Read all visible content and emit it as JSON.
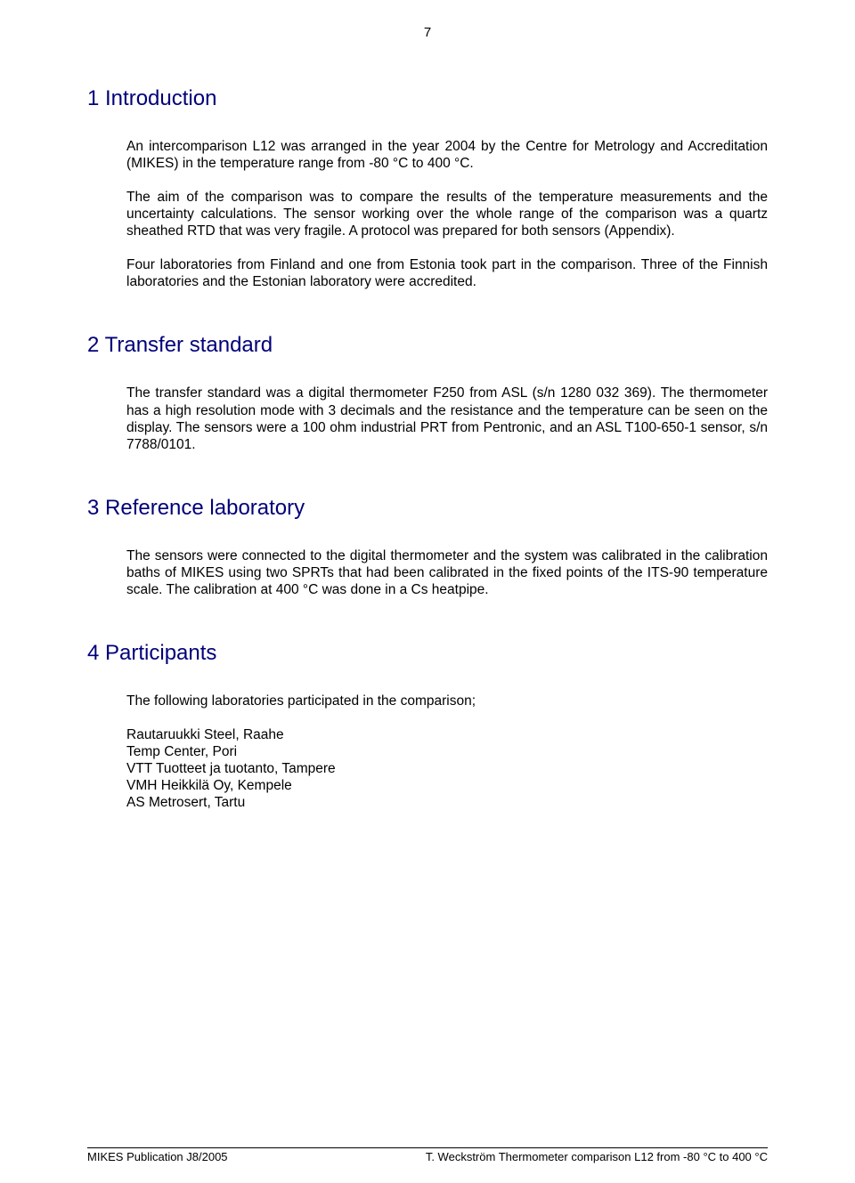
{
  "page_number": "7",
  "sections": {
    "intro": {
      "heading": "1  Introduction",
      "p1": "An intercomparison L12 was arranged in the year 2004 by the Centre for Metrology and Accreditation (MIKES) in the temperature range from -80 °C to 400 °C.",
      "p2": "The aim of the comparison was to compare the results of the temperature measurements and the uncertainty calculations. The sensor working over the whole range of the comparison was a quartz sheathed RTD that was very fragile. A protocol was prepared for both sensors (Appendix).",
      "p3": "Four laboratories from Finland and one from Estonia took part in the comparison. Three of the Finnish laboratories and the Estonian laboratory were accredited."
    },
    "transfer": {
      "heading": "2  Transfer standard",
      "p1": "The transfer standard was a digital thermometer F250 from ASL (s/n 1280 032 369). The thermometer has a high resolution mode with 3 decimals and the resistance and the temperature can be seen on the display. The sensors were a 100 ohm industrial PRT from Pentronic, and an ASL T100-650-1 sensor, s/n 7788/0101."
    },
    "reference": {
      "heading": "3  Reference laboratory",
      "p1": "The sensors were connected to the digital thermometer and the system was calibrated in the calibration baths of MIKES using two SPRTs that had been calibrated in the fixed points of the ITS-90 temperature scale. The calibration at 400 °C was done in a Cs heatpipe."
    },
    "participants": {
      "heading": "4  Participants",
      "intro": "The following laboratories participated in the comparison;",
      "list": [
        "Rautaruukki Steel, Raahe",
        "Temp Center, Pori",
        "VTT Tuotteet ja tuotanto, Tampere",
        "VMH Heikkilä Oy, Kempele",
        "AS Metrosert, Tartu"
      ]
    }
  },
  "footer": {
    "left": "MIKES Publication J8/2005",
    "right": "T. Weckström Thermometer comparison L12 from -80 °C to 400 °C"
  },
  "colors": {
    "heading_color": "#00007a",
    "body_text": "#000000",
    "background": "#ffffff"
  },
  "typography": {
    "heading_fontsize": 24,
    "body_fontsize": 15.5,
    "footer_fontsize": 13,
    "font_family": "Arial"
  }
}
